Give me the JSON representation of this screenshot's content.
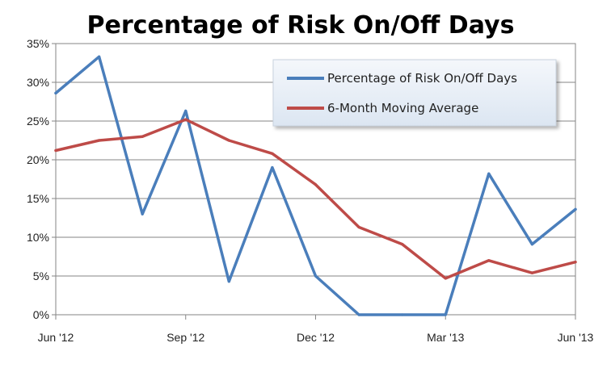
{
  "chart_data": {
    "type": "line",
    "title": "Percentage of Risk On/Off Days",
    "xlabel": "",
    "ylabel": "",
    "ylim": [
      0,
      35
    ],
    "yticks": [
      0,
      5,
      10,
      15,
      20,
      25,
      30,
      35
    ],
    "ytick_labels": [
      "0%",
      "5%",
      "10%",
      "15%",
      "20%",
      "25%",
      "30%",
      "35%"
    ],
    "x": [
      0,
      1,
      2,
      3,
      4,
      5,
      6,
      7,
      8,
      9,
      10,
      11,
      12
    ],
    "xticks": [
      0,
      3,
      6,
      9,
      12
    ],
    "xtick_labels": [
      "Jun '12",
      "Sep '12",
      "Dec '12",
      "Mar '13",
      "Jun '13"
    ],
    "grid": true,
    "legend_position": "top-right",
    "series": [
      {
        "name": "Percentage of Risk On/Off Days",
        "color": "#4a7ebb",
        "values": [
          28.6,
          33.3,
          13.0,
          26.3,
          4.3,
          19.0,
          5.0,
          0.0,
          0.0,
          0.0,
          18.2,
          9.1,
          13.6
        ]
      },
      {
        "name": "6-Month Moving Average",
        "color": "#be4b48",
        "values": [
          21.2,
          22.5,
          23.0,
          25.2,
          22.5,
          20.8,
          16.8,
          11.3,
          9.1,
          4.7,
          7.0,
          5.4,
          6.8
        ]
      }
    ]
  }
}
